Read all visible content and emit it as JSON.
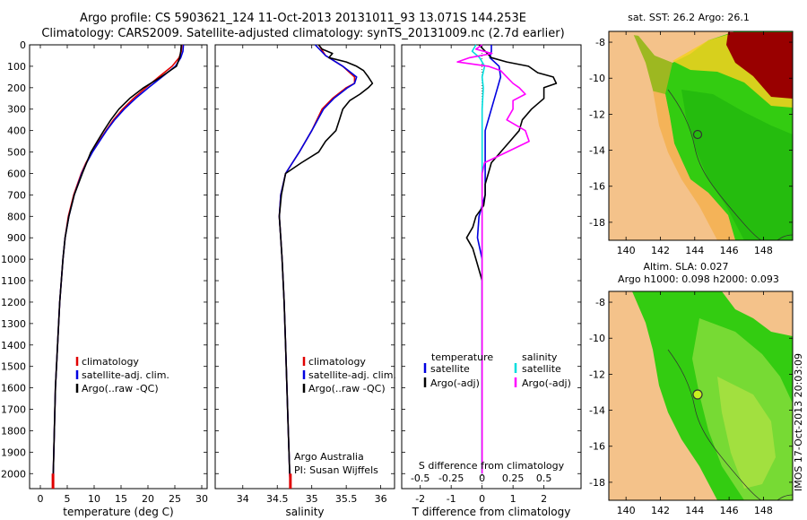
{
  "title_line1": "Argo profile: CS 5903621_124 11-Oct-2013 20131011_93 13.071S 144.253E",
  "title_line2": "Climatology: CARS2009. Satellite-adjusted climatology: synTS_20131009.nc (2.7d earlier)",
  "colors": {
    "climatology": "#e00000",
    "satellite": "#0000e0",
    "argo": "#000000",
    "salinity_satellite": "#00e0e0",
    "salinity_argo": "#ff00ff",
    "land": "#f4c28a",
    "sea_green": "#33cc11",
    "hot": "#990000"
  },
  "credits": {
    "line1": "Argo Australia",
    "line2": "PI: Susan Wijffels"
  },
  "diff_legend": {
    "temp_header": "temperature",
    "sal_header": "salinity",
    "temp_satellite": "satellite",
    "temp_argo": "Argo(-adj)",
    "sal_satellite": "satellite",
    "sal_argo": "Argo(-adj)"
  },
  "map_top": {
    "title": "sat. SST: 26.2  Argo: 26.1",
    "yticks": [
      "-8",
      "-10",
      "-12",
      "-14",
      "-16",
      "-18"
    ],
    "xticks": [
      "140",
      "142",
      "144",
      "146",
      "148"
    ]
  },
  "map_bottom": {
    "title_line1": "Altim. SLA: 0.027",
    "title_line2": "Argo h1000: 0.098 h2000: 0.093",
    "yticks": [
      "-8",
      "-10",
      "-12",
      "-14",
      "-16",
      "-18"
    ],
    "xticks": [
      "140",
      "142",
      "144",
      "146",
      "148"
    ]
  },
  "side_stamp": "IMOS 17-Oct-2013 20:03:09",
  "chart_data": [
    {
      "type": "line",
      "name": "temperature",
      "xlabel": "temperature (deg C)",
      "ylabel": "",
      "xlim": [
        -2,
        31
      ],
      "ylim": [
        2070,
        0
      ],
      "xticks": [
        0,
        5,
        10,
        15,
        20,
        25,
        30
      ],
      "yticks": [
        0,
        100,
        200,
        300,
        400,
        500,
        600,
        700,
        800,
        900,
        1000,
        1100,
        1200,
        1300,
        1400,
        1500,
        1600,
        1700,
        1800,
        1900,
        2000
      ],
      "legend": [
        "climatology",
        "satellite-adj. clim.",
        "Argo(..raw -QC)"
      ],
      "series": [
        {
          "name": "climatology",
          "color": "#e00000",
          "depth": [
            0,
            30,
            60,
            100,
            150,
            200,
            250,
            300,
            350,
            400,
            450,
            500,
            550,
            600,
            700,
            800,
            900,
            1000,
            1200,
            1400,
            1600,
            1800,
            2000,
            2070
          ],
          "values": [
            26.3,
            26.2,
            25.8,
            24.5,
            22,
            19.6,
            17.3,
            15.3,
            13.6,
            12.2,
            10.9,
            9.6,
            8.5,
            7.6,
            6.2,
            5.2,
            4.6,
            4.2,
            3.6,
            3.2,
            2.8,
            2.6,
            2.4,
            2.35
          ]
        },
        {
          "name": "satellite-adj. clim.",
          "color": "#0000e0",
          "depth": [
            0,
            30,
            60,
            100,
            150,
            200,
            250,
            300,
            350,
            400,
            450,
            500,
            550,
            600,
            700,
            800,
            900,
            1000,
            1200,
            1400,
            1600,
            1800,
            2000,
            2070
          ],
          "values": [
            26.6,
            26.5,
            26.1,
            25.1,
            22.6,
            20.1,
            17.7,
            15.6,
            13.8,
            12.3,
            11,
            9.7,
            8.6,
            7.7,
            6.3,
            5.3,
            4.6,
            4.2,
            3.6,
            3.2,
            2.8,
            2.6,
            2.4,
            2.35
          ]
        },
        {
          "name": "Argo(..raw -QC)",
          "color": "#000000",
          "depth": [
            0,
            30,
            60,
            100,
            150,
            200,
            250,
            300,
            350,
            400,
            450,
            500,
            550,
            600,
            700,
            800,
            900,
            1000,
            1200,
            1400,
            1600,
            1800,
            2000
          ],
          "values": [
            26.2,
            26.1,
            25.9,
            25.3,
            22.4,
            19.2,
            16.6,
            14.6,
            13.1,
            11.8,
            10.6,
            9.4,
            8.6,
            7.8,
            6.3,
            5.3,
            4.6,
            4.2,
            3.6,
            3.2,
            2.8,
            2.6,
            2.4
          ]
        }
      ]
    },
    {
      "type": "line",
      "name": "salinity",
      "xlabel": "salinity",
      "ylabel": "",
      "xlim": [
        33.6,
        36.2
      ],
      "ylim": [
        2070,
        0
      ],
      "xticks": [
        34,
        34.5,
        35,
        35.5,
        36
      ],
      "xticklabels": [
        "34",
        "34.5",
        "35",
        "35.5",
        "36"
      ],
      "legend": [
        "climatology",
        "satellite-adj. clim.",
        "Argo(..raw -QC)"
      ],
      "series": [
        {
          "name": "climatology",
          "color": "#e00000",
          "depth": [
            0,
            50,
            100,
            150,
            180,
            200,
            250,
            300,
            400,
            500,
            600,
            700,
            800,
            900,
            1000,
            1200,
            1400,
            1600,
            1800,
            2000,
            2070
          ],
          "values": [
            35.1,
            35.2,
            35.45,
            35.62,
            35.62,
            35.5,
            35.3,
            35.15,
            35.0,
            34.82,
            34.62,
            34.55,
            34.53,
            34.55,
            34.57,
            34.6,
            34.62,
            34.64,
            34.66,
            34.68,
            34.69
          ]
        },
        {
          "name": "satellite-adj. clim.",
          "color": "#0000e0",
          "depth": [
            0,
            50,
            100,
            150,
            180,
            200,
            250,
            300,
            400,
            500,
            600,
            700,
            800,
            900,
            1000,
            1200,
            1400,
            1600,
            1800,
            2000,
            2070
          ],
          "values": [
            35.05,
            35.2,
            35.45,
            35.65,
            35.62,
            35.52,
            35.32,
            35.17,
            35.0,
            34.82,
            34.62,
            34.55,
            34.53,
            34.55,
            34.57,
            34.6,
            34.62,
            34.64,
            34.66,
            34.68,
            34.69
          ]
        },
        {
          "name": "Argo(..raw -QC)",
          "color": "#000000",
          "depth": [
            0,
            20,
            40,
            60,
            80,
            100,
            120,
            150,
            180,
            200,
            230,
            260,
            300,
            350,
            400,
            450,
            500,
            550,
            600,
            700,
            800,
            900,
            1000,
            1200,
            1400,
            1600,
            1800,
            2000
          ],
          "values": [
            35.1,
            35.15,
            35.3,
            35.25,
            35.5,
            35.65,
            35.75,
            35.82,
            35.88,
            35.82,
            35.7,
            35.55,
            35.45,
            35.4,
            35.35,
            35.2,
            35.1,
            34.85,
            34.62,
            34.56,
            34.53,
            34.55,
            34.57,
            34.6,
            34.62,
            34.64,
            34.66,
            34.68
          ]
        }
      ]
    },
    {
      "type": "line",
      "name": "difference from climatology",
      "xlabel": "T difference from climatology",
      "x2label": "S difference from climatology",
      "xlim": [
        -2.6,
        3.2
      ],
      "ylim": [
        2070,
        0
      ],
      "xticks": [
        -2,
        -1,
        0,
        1,
        2
      ],
      "x2ticks": [
        -0.5,
        -0.25,
        0,
        0.25,
        0.5
      ],
      "x2ticklabels": [
        "-0.5",
        "-0.25",
        "0",
        "0.25",
        "0.5"
      ],
      "legend": [
        "temperature satellite",
        "temperature Argo(-adj)",
        "salinity satellite",
        "salinity Argo(-adj)"
      ],
      "series": [
        {
          "name": "temperature satellite",
          "color": "#0000e0",
          "depth": [
            0,
            30,
            60,
            100,
            150,
            200,
            300,
            400,
            500,
            600,
            700,
            800,
            900,
            1000,
            1200,
            1500,
            1800,
            2000
          ],
          "values": [
            0.3,
            0.3,
            0.25,
            0.55,
            0.6,
            0.5,
            0.3,
            0.1,
            0.1,
            0.1,
            0.1,
            -0.1,
            -0.15,
            0,
            0,
            0,
            0,
            0
          ]
        },
        {
          "name": "temperature Argo(-adj)",
          "color": "#000000",
          "depth": [
            0,
            30,
            60,
            80,
            100,
            130,
            150,
            180,
            200,
            250,
            300,
            350,
            400,
            450,
            500,
            550,
            600,
            650,
            700,
            750,
            800,
            850,
            900,
            950,
            1000,
            1100,
            1200,
            1500,
            1800,
            2000
          ],
          "values": [
            -0.1,
            0.1,
            0.3,
            0.8,
            1.5,
            1.8,
            2.3,
            2.4,
            2.0,
            2.0,
            1.6,
            1.3,
            1.2,
            0.9,
            0.6,
            0.3,
            0.2,
            0.1,
            0.1,
            0.05,
            -0.2,
            -0.3,
            -0.5,
            -0.3,
            -0.2,
            0,
            0,
            0,
            0,
            0
          ]
        },
        {
          "name": "salinity satellite",
          "color": "#00dddd",
          "depth": [
            0,
            30,
            60,
            100,
            150,
            200,
            300,
            400,
            500,
            600,
            800,
            1000,
            1500,
            2000
          ],
          "values": [
            -0.05,
            -0.08,
            -0.02,
            0.02,
            0.0,
            0.01,
            0.0,
            0.0,
            0.0,
            0.0,
            0.0,
            0.0,
            0.0,
            0.0
          ]
        },
        {
          "name": "salinity Argo(-adj)",
          "color": "#ff00ff",
          "depth": [
            0,
            20,
            40,
            60,
            80,
            100,
            120,
            150,
            180,
            200,
            230,
            260,
            300,
            350,
            400,
            450,
            500,
            550,
            600,
            700,
            800,
            1000,
            1500,
            2000
          ],
          "values": [
            0.0,
            -0.05,
            0.08,
            -0.1,
            -0.2,
            0.05,
            0.15,
            0.2,
            0.25,
            0.3,
            0.35,
            0.25,
            0.25,
            0.2,
            0.35,
            0.38,
            0.2,
            0.02,
            0.0,
            0.0,
            0.0,
            0.0,
            0.0,
            0.0
          ]
        }
      ]
    }
  ]
}
